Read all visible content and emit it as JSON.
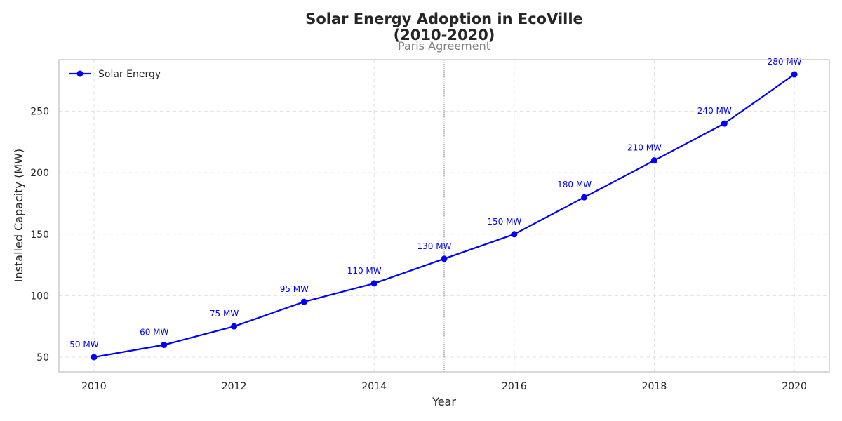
{
  "chart_data": {
    "type": "line",
    "title_line1": "Solar Energy Adoption in EcoVille",
    "title_line2": "(2010-2020)",
    "xlabel": "Year",
    "ylabel": "Installed Capacity (MW)",
    "xlim": [
      2009.5,
      2020.5
    ],
    "ylim": [
      38,
      292
    ],
    "xticks": [
      2010,
      2012,
      2014,
      2016,
      2018,
      2020
    ],
    "yticks": [
      50,
      100,
      150,
      200,
      250
    ],
    "grid": true,
    "legend_position": "upper left",
    "series": [
      {
        "name": "Solar Energy",
        "color": "#0000ff",
        "marker": "circle",
        "x": [
          2010,
          2011,
          2012,
          2013,
          2014,
          2015,
          2016,
          2017,
          2018,
          2019,
          2020
        ],
        "y": [
          50,
          60,
          75,
          95,
          110,
          130,
          150,
          180,
          210,
          240,
          280
        ],
        "data_labels": [
          "50 MW",
          "60 MW",
          "75 MW",
          "95 MW",
          "110 MW",
          "130 MW",
          "150 MW",
          "180 MW",
          "210 MW",
          "240 MW",
          "280 MW"
        ]
      }
    ],
    "annotations": [
      {
        "type": "vertical-line",
        "x": 2015,
        "label": "Paris Agreement",
        "color": "#808080",
        "style": "dotted"
      }
    ]
  }
}
